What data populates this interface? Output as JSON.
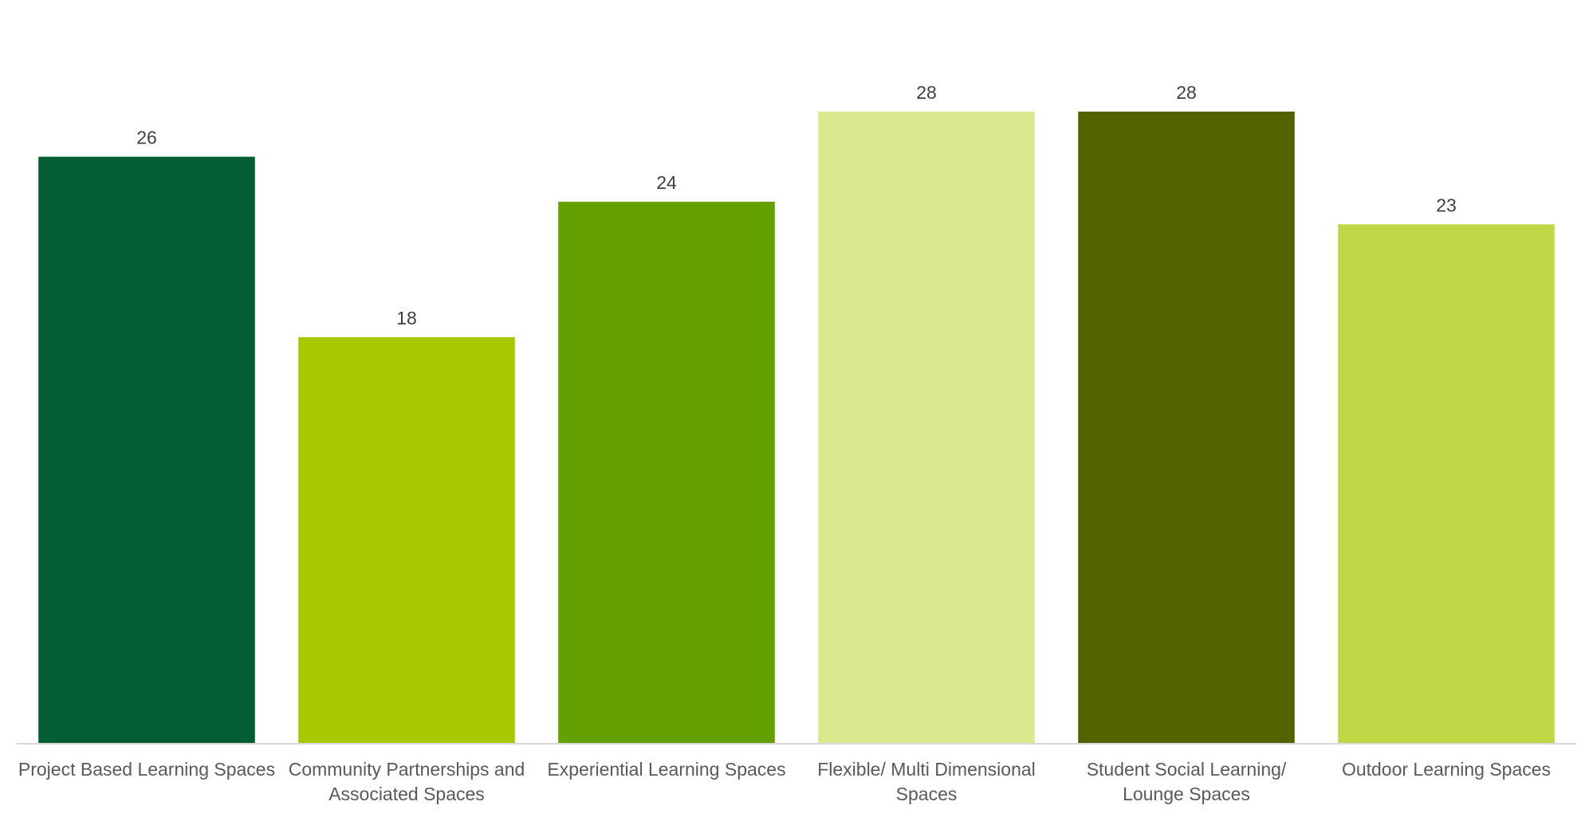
{
  "chart_data": {
    "type": "bar",
    "categories": [
      [
        "Project Based Learning Spaces"
      ],
      [
        "Community Partnerships and",
        "Associated Spaces"
      ],
      [
        "Experiential Learning Spaces"
      ],
      [
        "Flexible/ Multi Dimensional",
        "Spaces"
      ],
      [
        "Student Social Learning/",
        "Lounge Spaces"
      ],
      [
        "Outdoor Learning Spaces"
      ]
    ],
    "values": [
      26,
      18,
      24,
      28,
      28,
      23
    ],
    "data_labels": [
      "26",
      "18",
      "24",
      "28",
      "28",
      "23"
    ],
    "bar_colors": [
      "#005E32",
      "#A8C800",
      "#64A000",
      "#DCE88E",
      "#556200",
      "#C0D846"
    ],
    "title": "",
    "xlabel": "",
    "ylabel": "",
    "ylim": [
      0,
      28
    ],
    "grid": false,
    "legend": "none",
    "axis_line_color": "#D9D9D9"
  }
}
